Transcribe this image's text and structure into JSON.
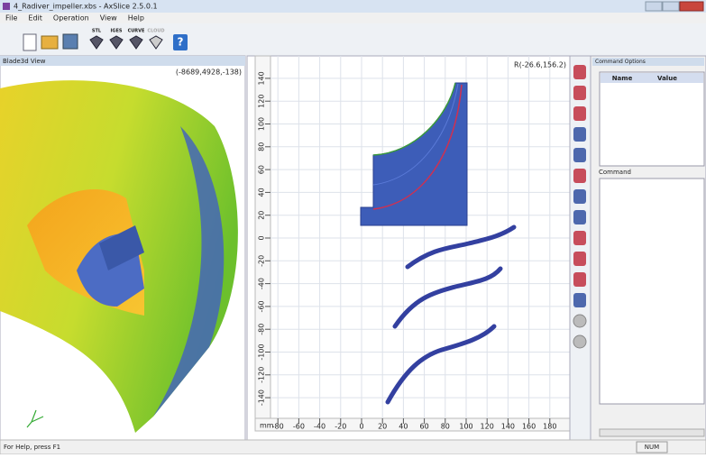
{
  "window": {
    "title": "4_Radiver_impeller.xbs - AxSlice 2.5.0.1"
  },
  "menu": [
    "File",
    "Edit",
    "Operation",
    "View",
    "Help"
  ],
  "toolbar": [
    "STL",
    "IGES",
    "CURVE",
    "CLOUD"
  ],
  "view3d": {
    "title": "Blade3d View",
    "coords": "(-8689,4928,-138)"
  },
  "plot": {
    "readout": "R(-26.6,156.2)",
    "unit": "mm",
    "xticks": [
      -80,
      -60,
      -40,
      -20,
      0,
      20,
      40,
      60,
      80,
      100,
      120,
      140,
      160,
      180
    ],
    "yticks": [
      140,
      120,
      100,
      80,
      60,
      40,
      20,
      0,
      -20,
      -40,
      -60,
      -80,
      -100,
      -120,
      -140
    ]
  },
  "command_options": {
    "title": "Command Options",
    "columns": [
      "Name",
      "Value"
    ]
  },
  "command": {
    "title": "Command"
  },
  "status": {
    "help": "For Help, press F1",
    "num": "NUM"
  }
}
